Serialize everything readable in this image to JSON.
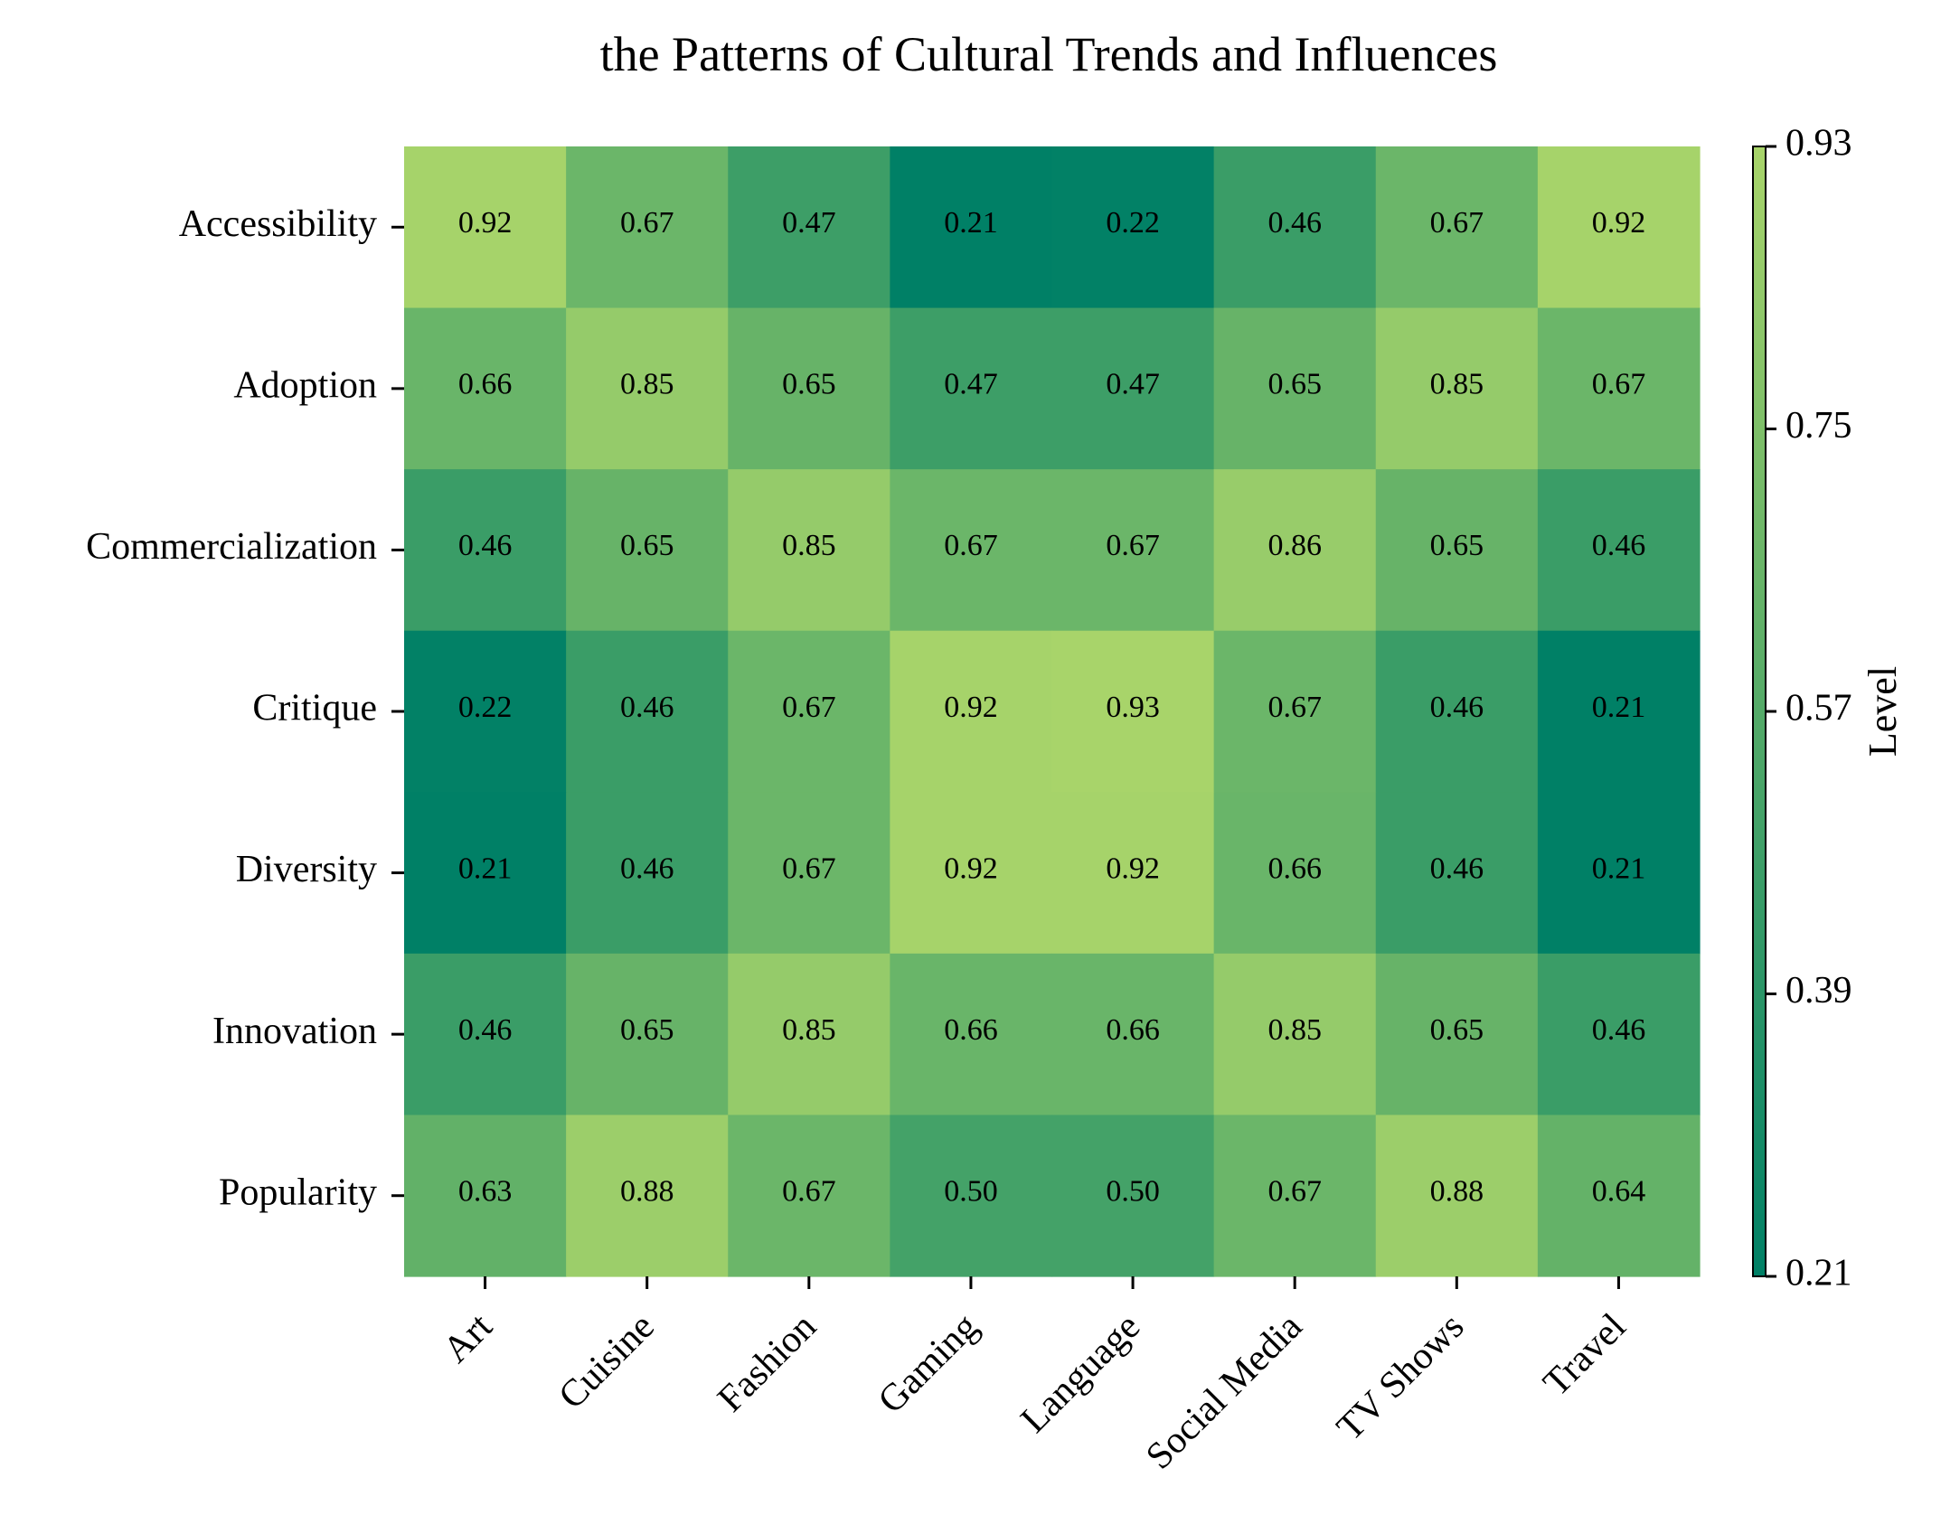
{
  "chart_data": {
    "type": "heatmap",
    "title": "the Patterns of Cultural Trends and Influences",
    "x_categories": [
      "Art",
      "Cuisine",
      "Fashion",
      "Gaming",
      "Language",
      "Social Media",
      "TV Shows",
      "Travel"
    ],
    "y_categories": [
      "Accessibility",
      "Adoption",
      "Commercialization",
      "Critique",
      "Diversity",
      "Innovation",
      "Popularity"
    ],
    "values": [
      [
        0.92,
        0.67,
        0.47,
        0.21,
        0.22,
        0.46,
        0.67,
        0.92
      ],
      [
        0.66,
        0.85,
        0.65,
        0.47,
        0.47,
        0.65,
        0.85,
        0.67
      ],
      [
        0.46,
        0.65,
        0.85,
        0.67,
        0.67,
        0.86,
        0.65,
        0.46
      ],
      [
        0.22,
        0.46,
        0.67,
        0.92,
        0.93,
        0.67,
        0.46,
        0.21
      ],
      [
        0.21,
        0.46,
        0.67,
        0.92,
        0.92,
        0.66,
        0.46,
        0.21
      ],
      [
        0.46,
        0.65,
        0.85,
        0.66,
        0.66,
        0.85,
        0.65,
        0.46
      ],
      [
        0.63,
        0.88,
        0.67,
        0.5,
        0.5,
        0.67,
        0.88,
        0.64
      ]
    ],
    "value_format": "0.00",
    "colorbar": {
      "label": "Level",
      "min": 0.21,
      "max": 0.93,
      "ticks": [
        "0.21",
        "0.39",
        "0.57",
        "0.75",
        "0.93"
      ],
      "colormap": "summer-like green",
      "color_low": "#008066",
      "color_high": "#a8d46a"
    },
    "grid": false,
    "x_tick_rotation_deg": 45
  }
}
